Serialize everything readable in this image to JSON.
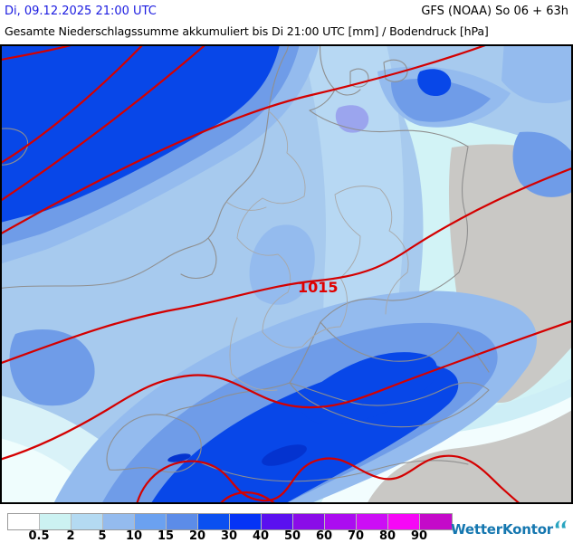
{
  "header": {
    "datetime": "Di, 09.12.2025 21:00 UTC",
    "datetime_color": "#1a1ae0",
    "model_run": "GFS (NOAA) So 06 + 63h",
    "title": "Gesamte Niederschlagssumme akkumuliert bis Di 21:00 UTC [mm] / Bodendruck [hPa]"
  },
  "map": {
    "pressure_label": "1015",
    "colors": {
      "base": "#a7caee",
      "base_light": "#b7d8f3",
      "pale_cyan": "#d2f3f6",
      "pale_band": "#cdeef6",
      "white_band": "#f2fdfe",
      "pale_corner": "#d9f2f8",
      "white_corner": "#effdfd",
      "dry_gray": "#c9c8c5",
      "rain_5": "#94bbee",
      "rain_10": "#6f9ce8",
      "rain_20": "#0847e8",
      "rain_30": "#0433cf",
      "violet": "#9ba5ee",
      "isobar": "#d40000",
      "isobar_label": "#e00000",
      "border": "#8f8f8f",
      "border_inner": "#a8a8a8"
    }
  },
  "legend": {
    "values": [
      "0.5",
      "2",
      "5",
      "10",
      "15",
      "20",
      "30",
      "40",
      "50",
      "60",
      "70",
      "80",
      "90"
    ],
    "colors": [
      "#ffffff",
      "#ccf2f2",
      "#b4daf2",
      "#94bbee",
      "#6ba1f0",
      "#5c8ce8",
      "#0b50f0",
      "#0534f5",
      "#5a10ef",
      "#8a0ce8",
      "#ab0cf0",
      "#cc0ef5",
      "#f607f6",
      "#c40ac9"
    ]
  },
  "branding": {
    "logo_text": "WetterKontor",
    "logo_color": "#1577b0",
    "logo_mark_color": "#2aa5c0"
  }
}
